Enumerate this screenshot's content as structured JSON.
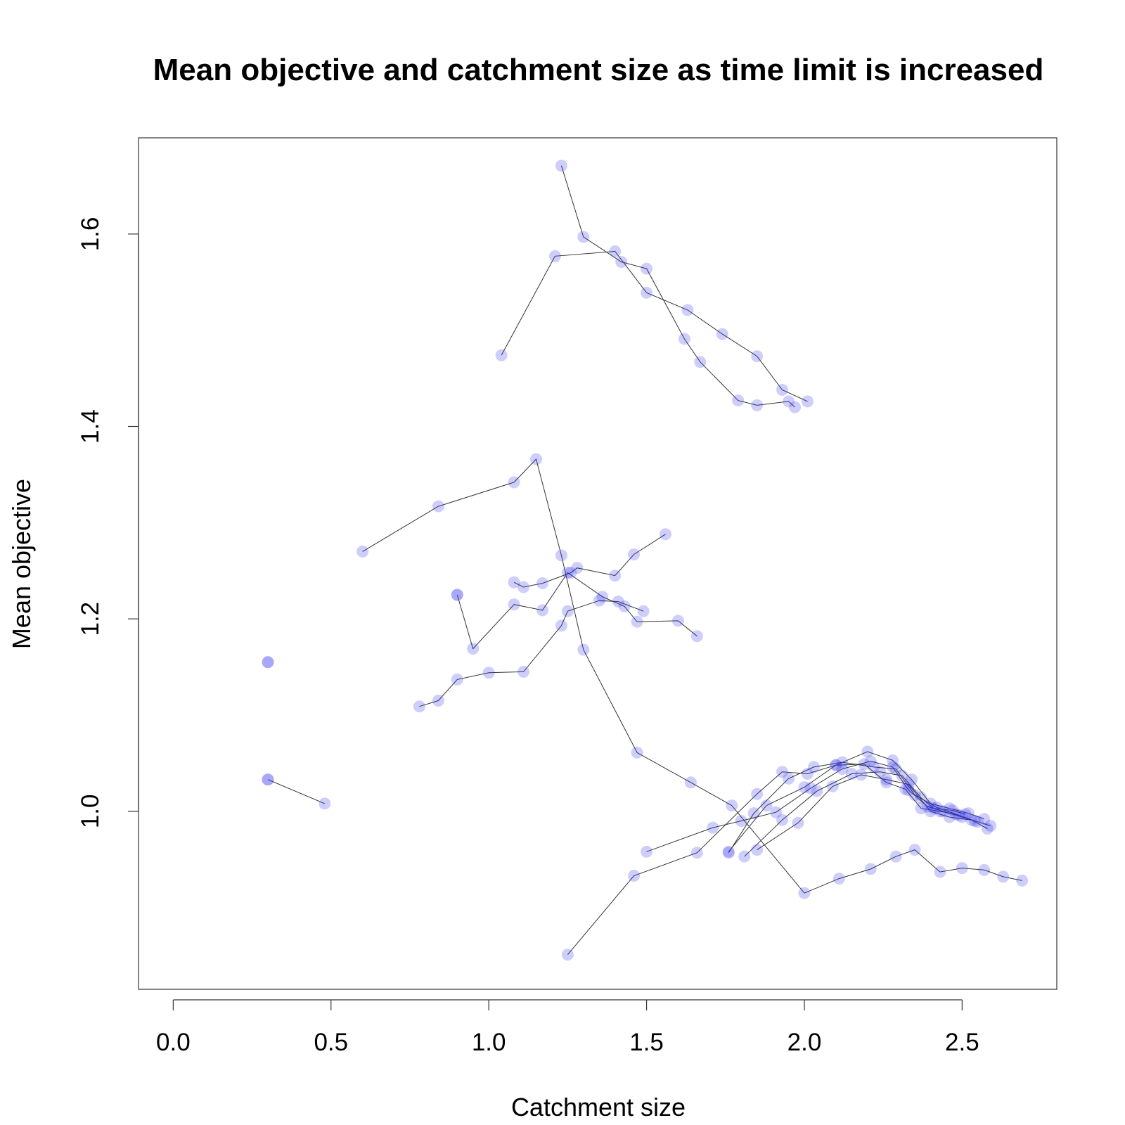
{
  "chart_data": {
    "type": "scatter",
    "title": "Mean objective and catchment size as time limit is increased",
    "xlabel": "Catchment size",
    "ylabel": "Mean objective",
    "xlim": [
      -0.11,
      2.8
    ],
    "ylim": [
      0.815,
      1.7
    ],
    "x_ticks": [
      0.0,
      0.5,
      1.0,
      1.5,
      2.0,
      2.5
    ],
    "x_tick_labels": [
      "0.0",
      "0.5",
      "1.0",
      "1.5",
      "2.0",
      "2.5"
    ],
    "y_ticks": [
      1.0,
      1.2,
      1.4,
      1.6
    ],
    "y_tick_labels": [
      "1.0",
      "1.2",
      "1.4",
      "1.6"
    ],
    "grid": false,
    "legend": "none",
    "point_color": "#3333ee",
    "point_opacity": 0.24,
    "line_color": "#333333",
    "series": [
      {
        "x": [
          0.3,
          0.3
        ],
        "y": [
          1.155,
          1.155
        ]
      },
      {
        "x": [
          0.3,
          0.3,
          0.48
        ],
        "y": [
          1.033,
          1.033,
          1.008
        ]
      },
      {
        "x": [
          0.9,
          0.9,
          0.95,
          1.08,
          1.17,
          1.25,
          1.36,
          1.43,
          1.47,
          1.6,
          1.66
        ],
        "y": [
          1.225,
          1.225,
          1.169,
          1.215,
          1.209,
          1.248,
          1.223,
          1.213,
          1.197,
          1.198,
          1.182
        ]
      },
      {
        "x": [
          0.6,
          0.84,
          1.08,
          1.15,
          1.23,
          1.3,
          1.47,
          1.64,
          1.77,
          2.0,
          2.11,
          2.21,
          2.29,
          2.35,
          2.43,
          2.5,
          2.57,
          2.63,
          2.69
        ],
        "y": [
          1.27,
          1.317,
          1.342,
          1.366,
          1.266,
          1.168,
          1.061,
          1.03,
          1.006,
          0.915,
          0.93,
          0.94,
          0.953,
          0.96,
          0.937,
          0.941,
          0.939,
          0.932,
          0.928
        ]
      },
      {
        "x": [
          1.04,
          1.21,
          1.4,
          1.5,
          1.63,
          1.74,
          1.85,
          1.93,
          2.01
        ],
        "y": [
          1.474,
          1.577,
          1.582,
          1.539,
          1.521,
          1.496,
          1.473,
          1.438,
          1.426
        ]
      },
      {
        "x": [
          1.23,
          1.3,
          1.42,
          1.5,
          1.62,
          1.67,
          1.79,
          1.85,
          1.95,
          1.97
        ],
        "y": [
          1.671,
          1.597,
          1.571,
          1.564,
          1.491,
          1.467,
          1.427,
          1.422,
          1.426,
          1.42
        ]
      },
      {
        "x": [
          0.78,
          0.84,
          0.9,
          1.0,
          1.11,
          1.23,
          1.25,
          1.35,
          1.41,
          1.49
        ],
        "y": [
          1.109,
          1.115,
          1.137,
          1.144,
          1.145,
          1.193,
          1.208,
          1.219,
          1.218,
          1.208
        ]
      },
      {
        "x": [
          1.08,
          1.11,
          1.17,
          1.26,
          1.28,
          1.4,
          1.46,
          1.56
        ],
        "y": [
          1.238,
          1.233,
          1.237,
          1.248,
          1.253,
          1.245,
          1.267,
          1.288
        ]
      },
      {
        "x": [
          1.25,
          1.46,
          1.66,
          1.85,
          1.93,
          2.01,
          2.1,
          2.2,
          2.28,
          2.34,
          2.4,
          2.46,
          2.52,
          2.57
        ],
        "y": [
          0.851,
          0.933,
          0.957,
          1.018,
          1.041,
          1.039,
          1.048,
          1.062,
          1.053,
          1.033,
          1.008,
          1.003,
          0.998,
          0.992
        ]
      },
      {
        "x": [
          1.5,
          1.71,
          1.8,
          1.91,
          2.02,
          2.12,
          2.21,
          2.28,
          2.33,
          2.39,
          2.44,
          2.5,
          2.55,
          2.59
        ],
        "y": [
          0.958,
          0.983,
          0.99,
          0.999,
          1.024,
          1.044,
          1.052,
          1.046,
          1.022,
          1.005,
          1.0,
          0.994,
          0.989,
          0.985
        ]
      },
      {
        "x": [
          1.76,
          1.84,
          1.95,
          2.03,
          2.12,
          2.22,
          2.29,
          2.35,
          2.42,
          2.48,
          2.54
        ],
        "y": [
          0.957,
          0.998,
          1.034,
          1.046,
          1.051,
          1.046,
          1.044,
          1.017,
          1.004,
          0.997,
          0.99
        ]
      },
      {
        "x": [
          1.76,
          1.88,
          2.0,
          2.1,
          2.19,
          2.26,
          2.32,
          2.37,
          2.43,
          2.49
        ],
        "y": [
          0.958,
          1.006,
          1.025,
          1.048,
          1.049,
          1.03,
          1.023,
          1.003,
          1.0,
          0.996
        ]
      },
      {
        "x": [
          1.81,
          1.93,
          2.04,
          2.15,
          2.24,
          2.31,
          2.37,
          2.41,
          2.47,
          2.51
        ],
        "y": [
          0.953,
          0.991,
          1.021,
          1.039,
          1.041,
          1.037,
          1.014,
          1.003,
          1.001,
          0.997
        ]
      },
      {
        "x": [
          1.85,
          1.98,
          2.09,
          2.18,
          2.26,
          2.33,
          2.4,
          2.46,
          2.53,
          2.58
        ],
        "y": [
          0.96,
          0.988,
          1.026,
          1.038,
          1.033,
          1.028,
          1.0,
          0.994,
          0.991,
          0.982
        ]
      }
    ]
  }
}
